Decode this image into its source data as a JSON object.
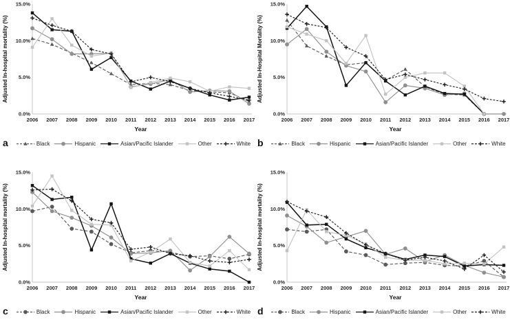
{
  "figure": {
    "x_axis_label": "Year",
    "y_tick_labels": [
      "0.0%",
      "5.0%",
      "10.0%",
      "15.0%"
    ],
    "series_colors": {
      "black": "#5a5a5a",
      "hispanic": "#8f8f8f",
      "asian_pacific_islander": "#141414",
      "other": "#c2c2c2",
      "white": "#1f1f1f"
    }
  },
  "chart_data": [
    {
      "type": "line",
      "panel_label": "a",
      "ylabel": "Adjusted In-hospital mortality (%)",
      "xlabel": "Year",
      "ylim": [
        0,
        15
      ],
      "yticks": [
        0,
        5,
        10,
        15
      ],
      "ytick_labels": [
        "0.0%",
        "5.0%",
        "10.0%",
        "15.0%"
      ],
      "grid": false,
      "legend_position": "bottom",
      "categories": [
        "2006",
        "2007",
        "2008",
        "2009",
        "2010",
        "2011",
        "2012",
        "2013",
        "2014",
        "2015",
        "2016",
        "2017"
      ],
      "series": [
        {
          "name": "Black",
          "marker": "triangle",
          "dashed": true,
          "color": "#5a5a5a",
          "values": [
            10.3,
            9.5,
            8.3,
            7.0,
            5.5,
            4.0,
            4.2,
            4.0,
            3.2,
            3.0,
            2.9,
            1.7
          ]
        },
        {
          "name": "Hispanic",
          "marker": "circle",
          "dashed": false,
          "color": "#8f8f8f",
          "values": [
            11.7,
            10.2,
            8.2,
            8.2,
            8.3,
            3.7,
            4.1,
            4.7,
            3.0,
            3.2,
            3.1,
            1.4
          ]
        },
        {
          "name": "Asian/Pacific Islander",
          "marker": "square",
          "dashed": false,
          "color": "#141414",
          "values": [
            13.8,
            11.5,
            11.3,
            6.1,
            7.7,
            4.5,
            3.4,
            4.5,
            3.5,
            2.6,
            1.9,
            2.3
          ]
        },
        {
          "name": "Other",
          "marker": "square",
          "dashed": false,
          "color": "#c2c2c2",
          "values": [
            9.1,
            13.0,
            9.4,
            7.9,
            8.3,
            3.6,
            4.3,
            4.9,
            4.4,
            3.1,
            3.7,
            3.5
          ]
        },
        {
          "name": "White",
          "marker": "plus",
          "dashed": true,
          "color": "#1f1f1f",
          "values": [
            13.1,
            12.1,
            11.3,
            8.8,
            8.2,
            4.4,
            5.0,
            4.4,
            3.5,
            2.9,
            2.4,
            1.9
          ]
        }
      ]
    },
    {
      "type": "line",
      "panel_label": "b",
      "ylabel": "Adjusted In-Hospital Mortality (%)",
      "xlabel": "Year",
      "ylim": [
        0,
        15
      ],
      "yticks": [
        0,
        5,
        10,
        15
      ],
      "ytick_labels": [
        "0.0%",
        "5.0%",
        "10.0%",
        "15.0%"
      ],
      "grid": false,
      "legend_position": "bottom",
      "categories": [
        "2006",
        "2007",
        "2008",
        "2009",
        "2010",
        "2011",
        "2012",
        "2013",
        "2014",
        "2015",
        "2016",
        "2017"
      ],
      "series": [
        {
          "name": "Black",
          "marker": "triangle",
          "dashed": true,
          "color": "#5a5a5a",
          "values": [
            12.8,
            9.3,
            7.9,
            6.7,
            7.0,
            4.6,
            6.1,
            3.7,
            2.7,
            2.6,
            0.0,
            null
          ]
        },
        {
          "name": "Hispanic",
          "marker": "circle",
          "dashed": false,
          "color": "#8f8f8f",
          "values": [
            9.5,
            11.6,
            8.5,
            6.6,
            5.8,
            1.6,
            3.9,
            3.5,
            2.6,
            2.8,
            0.0,
            0.0
          ]
        },
        {
          "name": "Asian/Pacific Islander",
          "marker": "square",
          "dashed": false,
          "color": "#141414",
          "values": [
            11.7,
            14.7,
            11.9,
            3.9,
            7.0,
            4.5,
            2.6,
            3.8,
            2.8,
            2.7,
            0.0,
            null
          ]
        },
        {
          "name": "Other",
          "marker": "square",
          "dashed": false,
          "color": "#c2c2c2",
          "values": [
            11.9,
            10.9,
            10.0,
            6.9,
            10.7,
            2.7,
            5.0,
            5.6,
            5.6,
            3.8,
            0.0,
            null
          ]
        },
        {
          "name": "White",
          "marker": "plus",
          "dashed": true,
          "color": "#1f1f1f",
          "values": [
            13.6,
            12.3,
            11.8,
            9.1,
            7.9,
            4.7,
            5.4,
            4.7,
            4.0,
            3.4,
            2.1,
            1.7
          ]
        }
      ]
    },
    {
      "type": "line",
      "panel_label": "c",
      "ylabel": "Adjusted In-hospital mortality (%)",
      "xlabel": "Year",
      "ylim": [
        0,
        15
      ],
      "yticks": [
        0,
        5,
        10,
        15
      ],
      "ytick_labels": [
        "0.0%",
        "5.0%",
        "10.0%",
        "15.0%"
      ],
      "grid": false,
      "legend_position": "bottom",
      "categories": [
        "2006",
        "2007",
        "2008",
        "2009",
        "2010",
        "2011",
        "2012",
        "2013",
        "2014",
        "2015",
        "2016",
        "2017"
      ],
      "series": [
        {
          "name": "Black",
          "marker": "circle",
          "dashed": true,
          "color": "#5a5a5a",
          "values": [
            9.7,
            10.3,
            7.3,
            6.9,
            5.2,
            4.0,
            4.3,
            4.1,
            3.5,
            3.6,
            3.2,
            3.8
          ]
        },
        {
          "name": "Hispanic",
          "marker": "circle",
          "dashed": false,
          "color": "#8f8f8f",
          "values": [
            12.3,
            9.7,
            8.8,
            7.7,
            6.1,
            3.9,
            4.0,
            4.3,
            1.6,
            3.5,
            6.2,
            3.9
          ]
        },
        {
          "name": "Asian/Pacific Islander",
          "marker": "square",
          "dashed": false,
          "color": "#141414",
          "values": [
            13.2,
            11.3,
            11.6,
            4.4,
            10.7,
            3.2,
            2.6,
            3.9,
            2.6,
            1.8,
            1.5,
            0.0
          ]
        },
        {
          "name": "Other",
          "marker": "square",
          "dashed": false,
          "color": "#c2c2c2",
          "values": [
            10.4,
            14.5,
            9.8,
            7.9,
            7.8,
            2.9,
            4.1,
            5.9,
            2.7,
            2.2,
            4.3,
            1.7
          ]
        },
        {
          "name": "White",
          "marker": "plus",
          "dashed": true,
          "color": "#1f1f1f",
          "values": [
            12.6,
            12.7,
            11.1,
            8.6,
            8.1,
            4.5,
            4.8,
            3.9,
            3.6,
            2.9,
            2.7,
            3.1
          ]
        }
      ]
    },
    {
      "type": "line",
      "panel_label": "d",
      "ylabel": "Adjusted In-hospital mortality (%)",
      "xlabel": "Year",
      "ylim": [
        0,
        15
      ],
      "yticks": [
        0,
        5,
        10,
        15
      ],
      "ytick_labels": [
        "0.0%",
        "5.0%",
        "10.0%",
        "15.0%"
      ],
      "grid": false,
      "legend_position": "bottom",
      "categories": [
        "2006",
        "2007",
        "2008",
        "2009",
        "2010",
        "2011",
        "2012",
        "2013",
        "2014",
        "2015",
        "2016",
        "2017"
      ],
      "series": [
        {
          "name": "Black",
          "marker": "circle",
          "dashed": true,
          "color": "#5a5a5a",
          "values": [
            7.2,
            6.9,
            7.2,
            4.2,
            3.7,
            2.4,
            2.6,
            2.7,
            2.3,
            2.2,
            2.9,
            0.7
          ]
        },
        {
          "name": "Hispanic",
          "marker": "circle",
          "dashed": false,
          "color": "#8f8f8f",
          "values": [
            9.1,
            7.6,
            5.4,
            6.2,
            7.0,
            3.8,
            4.6,
            2.8,
            3.7,
            2.3,
            1.3,
            0.7
          ]
        },
        {
          "name": "Asian/Pacific Islander",
          "marker": "square",
          "dashed": false,
          "color": "#141414",
          "values": [
            10.9,
            7.8,
            7.9,
            5.9,
            4.7,
            3.9,
            3.1,
            3.7,
            3.5,
            2.2,
            2.4,
            2.3
          ]
        },
        {
          "name": "Other",
          "marker": "square",
          "dashed": false,
          "color": "#c2c2c2",
          "values": [
            4.3,
            9.9,
            6.9,
            6.4,
            5.2,
            3.4,
            3.0,
            3.0,
            2.5,
            2.6,
            2.5,
            4.8
          ]
        },
        {
          "name": "White",
          "marker": "plus",
          "dashed": true,
          "color": "#1f1f1f",
          "values": [
            11.0,
            9.7,
            8.9,
            6.7,
            5.1,
            3.9,
            3.0,
            3.4,
            2.9,
            1.8,
            3.7,
            1.4
          ]
        }
      ]
    }
  ]
}
